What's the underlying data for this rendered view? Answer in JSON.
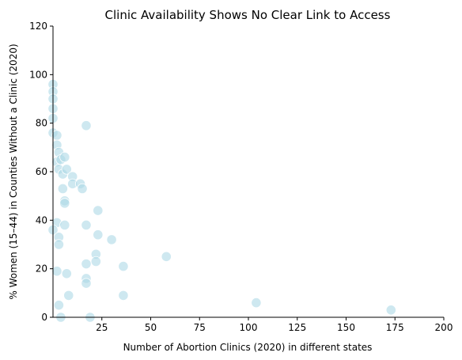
{
  "chart_data": {
    "type": "scatter",
    "title": "Clinic Availability Shows No Clear Link to Access",
    "xlabel": "Number of Abortion Clinics (2020) in different states",
    "ylabel": "% Women (15–44) in Counties Without a Clinic (2020)",
    "xlim": [
      0,
      200
    ],
    "ylim": [
      0,
      120
    ],
    "xticks": [
      25,
      50,
      75,
      100,
      125,
      150,
      175,
      200
    ],
    "yticks": [
      0,
      20,
      40,
      60,
      80,
      100,
      120
    ],
    "grid": false,
    "point_color": "#add8e6",
    "points": [
      [
        0,
        96
      ],
      [
        0,
        93
      ],
      [
        0,
        90
      ],
      [
        0,
        86
      ],
      [
        0,
        82
      ],
      [
        0,
        76
      ],
      [
        2,
        75
      ],
      [
        2,
        71
      ],
      [
        3,
        68
      ],
      [
        2,
        64
      ],
      [
        4,
        65
      ],
      [
        6,
        66
      ],
      [
        3,
        61
      ],
      [
        5,
        59
      ],
      [
        7,
        61
      ],
      [
        10,
        58
      ],
      [
        10,
        55
      ],
      [
        14,
        55
      ],
      [
        15,
        53
      ],
      [
        5,
        53
      ],
      [
        6,
        48
      ],
      [
        6,
        47
      ],
      [
        17,
        79
      ],
      [
        23,
        44
      ],
      [
        2,
        39
      ],
      [
        6,
        38
      ],
      [
        17,
        38
      ],
      [
        23,
        34
      ],
      [
        30,
        32
      ],
      [
        0,
        36
      ],
      [
        3,
        33
      ],
      [
        3,
        30
      ],
      [
        22,
        26
      ],
      [
        58,
        25
      ],
      [
        17,
        22
      ],
      [
        22,
        23
      ],
      [
        36,
        21
      ],
      [
        2,
        19
      ],
      [
        7,
        18
      ],
      [
        17,
        16
      ],
      [
        17,
        14
      ],
      [
        36,
        9
      ],
      [
        8,
        9
      ],
      [
        3,
        5
      ],
      [
        104,
        6
      ],
      [
        173,
        3
      ],
      [
        4,
        0
      ],
      [
        19,
        0
      ]
    ]
  }
}
